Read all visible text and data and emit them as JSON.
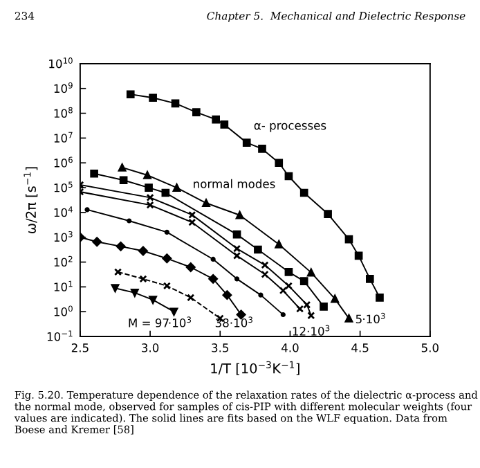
{
  "chart_data": {
    "type": "line",
    "xlabel": "1/T [10$^{−3}$K$^{−1}$]",
    "ylabel": "ω/2π [s$^{−1}$]",
    "log": "y",
    "grid": false,
    "xlim": [
      2.5,
      5.0
    ],
    "xticks": [
      {
        "value": 2.5,
        "label": "2.5"
      },
      {
        "value": 3.0,
        "label": "3.0"
      },
      {
        "value": 3.5,
        "label": "3.5"
      },
      {
        "value": 4.0,
        "label": "4.0"
      },
      {
        "value": 4.5,
        "label": "4.5"
      },
      {
        "value": 5.0,
        "label": "5.0"
      }
    ],
    "ylim": [
      0.1,
      10000000000
    ],
    "yticks": [
      {
        "value": 0.1,
        "label": "10$^{−1}$"
      },
      {
        "value": 1,
        "label": "10$^{0}$"
      },
      {
        "value": 10,
        "label": "10$^{1}$"
      },
      {
        "value": 100,
        "label": "10$^{2}$"
      },
      {
        "value": 1000,
        "label": "10$^{3}$"
      },
      {
        "value": 10000,
        "label": "10$^{4}$"
      },
      {
        "value": 100000,
        "label": "10$^{5}$"
      },
      {
        "value": 1000000,
        "label": "10$^{6}$"
      },
      {
        "value": 10000000,
        "label": "10$^{7}$"
      },
      {
        "value": 100000000,
        "label": "10$^{8}$"
      },
      {
        "value": 1000000000,
        "label": "10$^{9}$"
      },
      {
        "value": 10000000000,
        "label": "10$^{10}$"
      }
    ],
    "series": [
      {
        "color": "#000000",
        "marker": "square",
        "line_style": "solid",
        "x": [
          2.86,
          3.02,
          3.18,
          3.33,
          3.47,
          3.53,
          3.69,
          3.8,
          3.92,
          3.99,
          4.1,
          4.27,
          4.42,
          4.49,
          4.57,
          4.64
        ],
        "values": [
          580000000,
          420000000,
          250000000,
          110000000,
          56000000,
          35000000,
          6500000,
          3700000,
          1000000,
          290000,
          62000,
          8700,
          830,
          180,
          21,
          3.7
        ]
      },
      {
        "color": "#000000",
        "marker": "triangle",
        "line_style": "solid",
        "x": [
          2.8,
          2.98,
          3.19,
          3.4,
          3.64,
          3.92,
          4.15,
          4.32,
          4.42
        ],
        "values": [
          650000,
          320000,
          100000,
          24000,
          7800,
          520,
          38,
          3.3,
          0.54
        ]
      },
      {
        "color": "#000000",
        "marker": "square",
        "line_style": "solid",
        "x": [
          2.6,
          2.81,
          2.99,
          3.11,
          3.62,
          3.77,
          3.99,
          4.1,
          4.24
        ],
        "values": [
          370000,
          200000,
          100000,
          62000,
          1300,
          320,
          40,
          17,
          1.6
        ]
      },
      {
        "color": "#000000",
        "marker": "cross",
        "line_style": "solid",
        "x": [
          2.5,
          3.0,
          3.3,
          3.62,
          3.82,
          3.99,
          4.12,
          4.15
        ],
        "values": [
          130000,
          40000,
          8000,
          350,
          76,
          11,
          1.9,
          0.7
        ]
      },
      {
        "color": "#000000",
        "marker": "cross",
        "line_style": "solid",
        "x": [
          2.5,
          3.0,
          3.3,
          3.62,
          3.82,
          3.95,
          4.07
        ],
        "values": [
          68000,
          20000,
          4000,
          180,
          32,
          7.1,
          1.3
        ]
      },
      {
        "color": "#000000",
        "marker": "circle",
        "line_style": "solid",
        "x": [
          2.55,
          2.85,
          3.12,
          3.45,
          3.62,
          3.79,
          3.95
        ],
        "values": [
          13000,
          4600,
          1600,
          130,
          21,
          4.7,
          0.76
        ]
      },
      {
        "color": "#000000",
        "marker": "diamond",
        "line_style": "solid",
        "x": [
          2.5,
          2.62,
          2.79,
          2.95,
          3.12,
          3.29,
          3.45,
          3.55,
          3.65
        ],
        "values": [
          1000,
          660,
          430,
          280,
          140,
          62,
          21,
          4.7,
          0.76
        ]
      },
      {
        "color": "#000000",
        "marker": "cross",
        "line_style": "dashed",
        "x": [
          2.77,
          2.95,
          3.12,
          3.29,
          3.5
        ],
        "values": [
          40,
          21,
          11,
          3.7,
          0.54
        ]
      },
      {
        "color": "#000000",
        "marker": "triangle_down",
        "line_style": "solid",
        "x": [
          2.75,
          2.89,
          3.02,
          3.17
        ],
        "values": [
          8.9,
          5.8,
          3.0,
          1.0
        ]
      }
    ],
    "annotations": [
      "α- processes",
      "normal modes",
      "M = 97·10$^{3}$",
      "38·10$^{3}$",
      "12·10$^{3}$",
      "5·10$^{3}$",
      "234",
      "Chapter 5.  Mechanical and Dielectric Response",
      "Fig. 5.20. Temperature dependence of the relaxation rates of the dielectric α-process and the normal mode, observed for samples of cis-PIP with different molecular weights (four values are indicated). The solid lines are fits based on the WLF equation. Data from Boese and Kremer [58]"
    ]
  }
}
